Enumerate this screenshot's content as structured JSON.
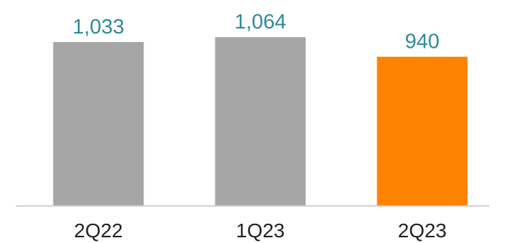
{
  "chart_data": {
    "type": "bar",
    "categories": [
      "2Q22",
      "1Q23",
      "2Q23"
    ],
    "values": [
      1033,
      1064,
      940
    ],
    "value_labels": [
      "1,033",
      "1,064",
      "940"
    ],
    "ylim": [
      0,
      1200
    ],
    "grid": false,
    "colors": {
      "bars": [
        "#a6a6a6",
        "#a6a6a6",
        "#ff8200"
      ],
      "value_label": "#2e8b9a",
      "axis": "#d0d0d0"
    }
  }
}
